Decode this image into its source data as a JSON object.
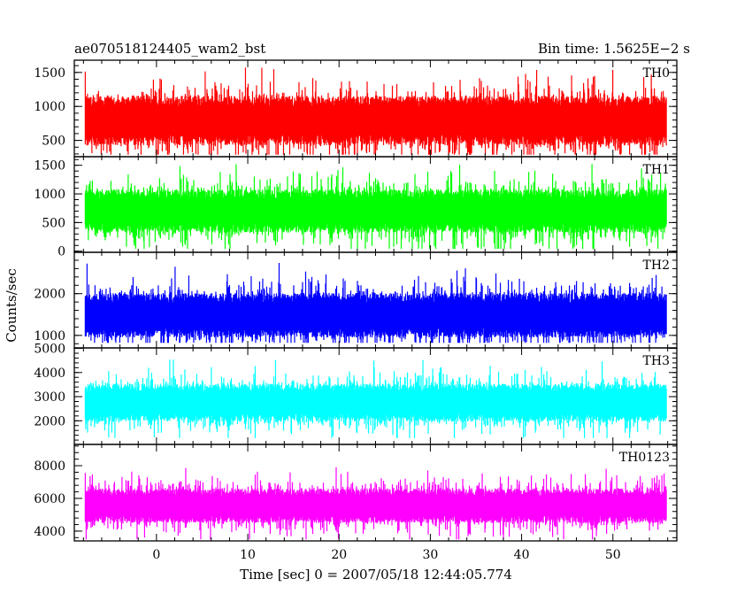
{
  "header": {
    "title_left": "ae070518124405_wam2_bst",
    "title_right": "Bin time: 1.5625E−2 s"
  },
  "axes": {
    "xlabel": "Time [sec] 0 = 2007/05/18 12:44:05.774",
    "ylabel": "Counts/sec"
  },
  "chart_data": {
    "type": "line",
    "title": "ae070518124405_wam2_bst",
    "subtitle": "Bin time: 1.5625E−2 s",
    "xlabel": "Time [sec] 0 = 2007/05/18 12:44:05.774",
    "ylabel": "Counts/sec",
    "xlim": [
      -9,
      57
    ],
    "x_range": [
      -7.8,
      55.9
    ],
    "x_ticks": [
      0,
      10,
      20,
      30,
      40,
      50
    ],
    "panels": [
      {
        "name": "TH0",
        "color": "#ff0000",
        "ylim": [
          260,
          1680
        ],
        "y_ticks": [
          500,
          1000,
          1500
        ],
        "y_range": [
          290,
          1680
        ],
        "baseline_mean": 790,
        "noise_sigma": 260
      },
      {
        "name": "TH1",
        "color": "#00ff00",
        "ylim": [
          -20,
          1650
        ],
        "y_ticks": [
          0,
          500,
          1000,
          1500
        ],
        "y_range": [
          40,
          1640
        ],
        "baseline_mean": 700,
        "noise_sigma": 270
      },
      {
        "name": "TH2",
        "color": "#0000ff",
        "ylim": [
          700,
          2990
        ],
        "y_ticks": [
          1000,
          2000
        ],
        "y_range": [
          820,
          2970
        ],
        "baseline_mean": 1480,
        "noise_sigma": 380
      },
      {
        "name": "TH3",
        "color": "#00ffff",
        "ylim": [
          1020,
          5020
        ],
        "y_ticks": [
          2000,
          3000,
          4000,
          5000
        ],
        "y_range": [
          1280,
          5000
        ],
        "baseline_mean": 2750,
        "noise_sigma": 560
      },
      {
        "name": "TH0123",
        "color": "#ff00ff",
        "ylim": [
          3400,
          9300
        ],
        "y_ticks": [
          4000,
          6000,
          8000
        ],
        "y_range": [
          3500,
          9200
        ],
        "baseline_mean": 5550,
        "noise_sigma": 750
      }
    ]
  }
}
